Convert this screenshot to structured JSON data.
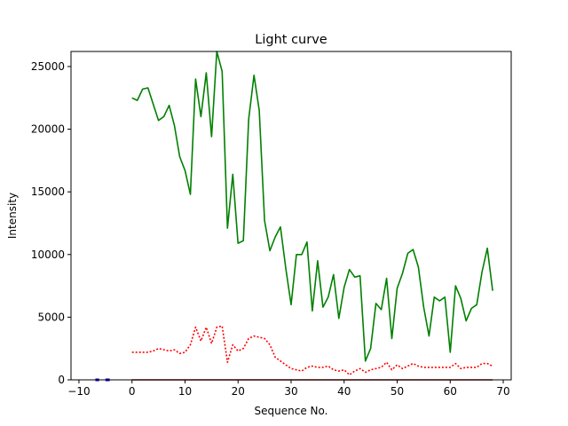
{
  "chart_data": {
    "type": "line",
    "title": "Light curve",
    "xlabel": "Sequence No.",
    "ylabel": "Intensity",
    "xlim": [
      -11.5,
      71.5
    ],
    "ylim": [
      0,
      26200
    ],
    "x_ticks": [
      -10,
      0,
      10,
      20,
      30,
      40,
      50,
      60,
      70
    ],
    "y_ticks": [
      0,
      5000,
      10000,
      15000,
      20000,
      25000
    ],
    "grid": false,
    "legend": "none",
    "series": [
      {
        "color": "#008000",
        "style": "solid",
        "x": [
          0,
          1,
          2,
          3,
          4,
          5,
          6,
          7,
          8,
          9,
          10,
          11,
          12,
          13,
          14,
          15,
          16,
          17,
          18,
          19,
          20,
          21,
          22,
          23,
          24,
          25,
          26,
          27,
          28,
          29,
          30,
          31,
          32,
          33,
          34,
          35,
          36,
          37,
          38,
          39,
          40,
          41,
          42,
          43,
          44,
          45,
          46,
          47,
          48,
          49,
          50,
          51,
          52,
          53,
          54,
          55,
          56,
          57,
          58,
          59,
          60,
          61,
          62,
          63,
          64,
          65,
          66,
          67,
          68
        ],
        "values": [
          22500,
          22300,
          23200,
          23300,
          22000,
          20700,
          21000,
          21900,
          20300,
          17800,
          16700,
          14800,
          24000,
          21000,
          24500,
          19400,
          26200,
          24600,
          12100,
          16400,
          10900,
          11100,
          20800,
          24300,
          21500,
          12700,
          10300,
          11400,
          12200,
          8900,
          6000,
          10000,
          10000,
          11000,
          5500,
          9500,
          5800,
          6600,
          8400,
          4900,
          7400,
          8800,
          8200,
          8300,
          1500,
          2500,
          6100,
          5600,
          8100,
          3300,
          7300,
          8500,
          10100,
          10400,
          9000,
          5800,
          3500,
          6600,
          6300,
          6600,
          2200,
          7500,
          6500,
          4700,
          5700,
          6000,
          8600,
          10500,
          7100
        ]
      },
      {
        "color": "#ff0000",
        "style": "dotted",
        "x": [
          0,
          1,
          2,
          3,
          4,
          5,
          6,
          7,
          8,
          9,
          10,
          11,
          12,
          13,
          14,
          15,
          16,
          17,
          18,
          19,
          20,
          21,
          22,
          23,
          24,
          25,
          26,
          27,
          28,
          29,
          30,
          31,
          32,
          33,
          34,
          35,
          36,
          37,
          38,
          39,
          40,
          41,
          42,
          43,
          44,
          45,
          46,
          47,
          48,
          49,
          50,
          51,
          52,
          53,
          54,
          55,
          56,
          57,
          58,
          59,
          60,
          61,
          62,
          63,
          64,
          65,
          66,
          67,
          68
        ],
        "values": [
          2200,
          2200,
          2200,
          2200,
          2300,
          2500,
          2400,
          2300,
          2400,
          2100,
          2200,
          2800,
          4200,
          3100,
          4200,
          2900,
          4200,
          4300,
          1400,
          2800,
          2300,
          2500,
          3300,
          3500,
          3400,
          3300,
          2800,
          1800,
          1500,
          1200,
          900,
          800,
          700,
          1000,
          1100,
          1000,
          1000,
          1100,
          800,
          700,
          800,
          400,
          700,
          900,
          600,
          800,
          900,
          1000,
          1400,
          800,
          1200,
          900,
          1100,
          1300,
          1100,
          1000,
          1000,
          1000,
          1000,
          1000,
          1000,
          1300,
          900,
          1000,
          1000,
          1000,
          1300,
          1300,
          1100
        ]
      },
      {
        "color": "#8b0000",
        "style": "solid",
        "x": [
          0,
          68
        ],
        "values": [
          0,
          0
        ]
      },
      {
        "color": "#0000cd",
        "style": "solid",
        "x": [
          -6.9,
          -6.2
        ],
        "values": [
          0,
          0
        ]
      },
      {
        "color": "#0000cd",
        "style": "solid",
        "x": [
          -5.0,
          -4.2
        ],
        "values": [
          0,
          0
        ]
      }
    ]
  }
}
